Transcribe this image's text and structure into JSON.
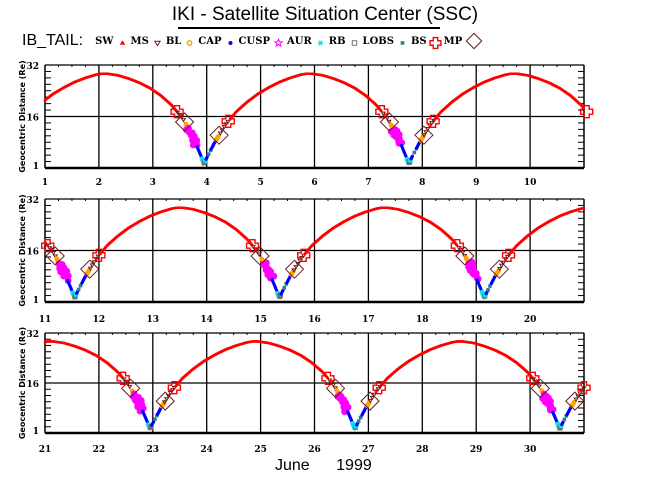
{
  "title": "IKI - Satellite Situation Center (SSC)",
  "legend": {
    "prefix": "IB_TAIL:",
    "items": [
      {
        "label": "SW",
        "marker": "sw-marker",
        "color": "#ff0000"
      },
      {
        "label": "MS",
        "marker": "triangle-down",
        "color": "#6b1a1a"
      },
      {
        "label": "BL",
        "marker": "sun",
        "color": "#ffa500"
      },
      {
        "label": "CAP",
        "marker": "dot",
        "color": "#0000ff"
      },
      {
        "label": "CUSP",
        "marker": "star",
        "color": "#ff00ff"
      },
      {
        "label": "AUR",
        "marker": "asterisk",
        "color": "#00e5ee"
      },
      {
        "label": "RB",
        "marker": "square-open",
        "color": "#707070"
      },
      {
        "label": "LOBS",
        "marker": "square-small",
        "color": "#2f7f8a"
      },
      {
        "label": "BS",
        "marker": "plus-open",
        "color": "#ff0000"
      },
      {
        "label": "MP",
        "marker": "diamond-open",
        "color": "#6b1a1a"
      }
    ]
  },
  "date_label": {
    "month": "June",
    "year": "1999"
  },
  "chart_data": {
    "type": "scatter",
    "title": "IKI - Satellite Situation Center (SSC)",
    "ylabel": "Geocentric Distance (Re)",
    "xlabel": "June 1999",
    "ylim": [
      0,
      32
    ],
    "yticks": [
      1,
      16,
      32
    ],
    "grid": true,
    "legend_placement": "top",
    "panels": [
      {
        "xlim": [
          1,
          11
        ],
        "xticks": [
          "1",
          "2",
          "3",
          "4",
          "5",
          "6",
          "7",
          "8",
          "9",
          "10"
        ]
      },
      {
        "xlim": [
          11,
          21
        ],
        "xticks": [
          "11",
          "12",
          "13",
          "14",
          "15",
          "16",
          "17",
          "18",
          "19",
          "20"
        ]
      },
      {
        "xlim": [
          21,
          31
        ],
        "xticks": [
          "21",
          "22",
          "23",
          "24",
          "25",
          "26",
          "27",
          "28",
          "29",
          "30"
        ]
      }
    ],
    "orbit": {
      "period_days": 3.8,
      "perigee_days": [
        0.15,
        3.95,
        7.75,
        11.55,
        15.35,
        19.15,
        22.95,
        26.75,
        30.55,
        34.35
      ],
      "perigee_Re": 1.5,
      "apogee_Re": 29.3,
      "profile_phase_days": [
        0,
        0.2,
        0.4,
        0.6,
        0.8,
        1.0,
        1.2,
        1.4,
        1.6,
        1.8,
        1.9,
        2.0,
        2.2,
        2.4,
        2.6,
        2.8,
        3.0,
        3.2,
        3.4,
        3.6,
        3.8
      ],
      "profile_distance_Re": [
        1.5,
        8,
        13.5,
        17.5,
        20.5,
        23,
        25,
        26.7,
        28,
        29,
        29.3,
        29.3,
        28.8,
        27.8,
        26.5,
        24.8,
        22.5,
        19.5,
        15.5,
        9.5,
        1.5
      ]
    },
    "regions_relative_to_perigee": [
      {
        "region": "SW",
        "from_days": -3.3,
        "to_days": -0.5
      },
      {
        "region": "MS",
        "from_days": -0.5,
        "to_days": -0.35
      },
      {
        "region": "BL",
        "from_days": -0.34,
        "to_days": -0.29
      },
      {
        "region": "CUSP",
        "from_days": -0.29,
        "to_days": -0.14
      },
      {
        "region": "CAP",
        "from_days": -0.14,
        "to_days": -0.04
      },
      {
        "region": "AUR",
        "from_days": -0.04,
        "to_days": 0.03
      },
      {
        "region": "RB",
        "from_days": 0.0,
        "to_days": 0.02
      },
      {
        "region": "CAP",
        "from_days": 0.03,
        "to_days": 0.22
      },
      {
        "region": "LOBS",
        "from_days": 0.07,
        "to_days": 0.13
      },
      {
        "region": "BL",
        "from_days": 0.22,
        "to_days": 0.27
      },
      {
        "region": "MS",
        "from_days": 0.27,
        "to_days": 0.47
      },
      {
        "region": "SW",
        "from_days": 0.47,
        "to_days": 3.3
      }
    ],
    "crossings_relative_to_perigee": [
      {
        "boundary": "BS",
        "phase_days": -0.5
      },
      {
        "boundary": "MP",
        "phase_days": -0.36
      },
      {
        "boundary": "MP",
        "phase_days": 0.28
      },
      {
        "boundary": "BS",
        "phase_days": 0.45
      }
    ]
  }
}
